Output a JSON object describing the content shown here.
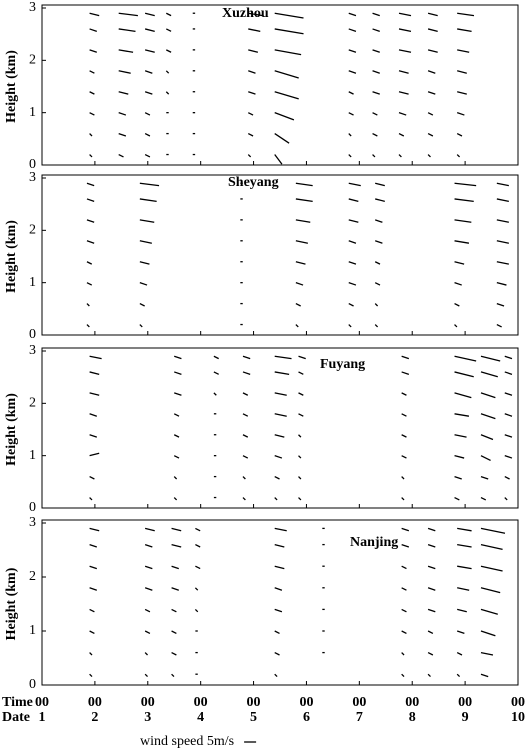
{
  "chart_data": [
    {
      "type": "wind-profile",
      "label": "Xuzhou",
      "ylabel": "Height (km)",
      "ylim": [
        0,
        3
      ],
      "yticks": [
        0,
        1,
        2,
        3
      ],
      "xlim": [
        1,
        10
      ],
      "heights": [
        0.2,
        0.6,
        1.0,
        1.4,
        1.8,
        2.2,
        2.6,
        2.9
      ],
      "profiles": [
        {
          "x": 1.9,
          "u": [
            1,
            1,
            2,
            2,
            2,
            3,
            3,
            4
          ],
          "v": [
            -1,
            -1,
            -1,
            -1,
            -1,
            -1,
            -1,
            -1
          ]
        },
        {
          "x": 2.45,
          "u": [
            2,
            3,
            3,
            4,
            5,
            6,
            7,
            8
          ],
          "v": [
            -1,
            -1,
            -1,
            -1,
            -1,
            -1,
            -1,
            -1
          ]
        },
        {
          "x": 2.95,
          "u": [
            2,
            2,
            2,
            3,
            3,
            4,
            4,
            4
          ],
          "v": [
            -1,
            -1,
            -1,
            -1,
            -1,
            -1,
            -1,
            -1
          ]
        },
        {
          "x": 3.35,
          "u": [
            1,
            1,
            1,
            1,
            1,
            2,
            2,
            2
          ],
          "v": [
            0,
            0,
            0,
            -1,
            -1,
            -1,
            -1,
            -1
          ]
        },
        {
          "x": 3.85,
          "u": [
            1,
            1,
            1,
            1,
            1,
            1,
            1,
            1
          ],
          "v": [
            0,
            0,
            0,
            0,
            0,
            0,
            0,
            0
          ]
        },
        {
          "x": 4.9,
          "u": [
            1,
            2,
            2,
            3,
            3,
            4,
            5,
            6
          ],
          "v": [
            -1,
            -1,
            -1,
            -1,
            -1,
            -1,
            -1,
            -1
          ]
        },
        {
          "x": 5.4,
          "u": [
            3,
            6,
            8,
            10,
            10,
            11,
            12,
            12
          ],
          "v": [
            -4,
            -4,
            -3,
            -3,
            -3,
            -2,
            -2,
            -2
          ]
        },
        {
          "x": 6.8,
          "u": [
            1,
            1,
            2,
            2,
            3,
            3,
            3,
            3
          ],
          "v": [
            -1,
            -1,
            -1,
            -1,
            -1,
            -1,
            -1,
            -1
          ]
        },
        {
          "x": 7.25,
          "u": [
            1,
            2,
            2,
            3,
            3,
            3,
            3,
            3
          ],
          "v": [
            -1,
            -1,
            -1,
            -1,
            -1,
            -1,
            -1,
            -1
          ]
        },
        {
          "x": 7.75,
          "u": [
            1,
            2,
            3,
            4,
            4,
            5,
            5,
            5
          ],
          "v": [
            -1,
            -1,
            -1,
            -1,
            -1,
            -1,
            -1,
            -1
          ]
        },
        {
          "x": 8.3,
          "u": [
            1,
            2,
            2,
            3,
            3,
            4,
            4,
            4
          ],
          "v": [
            -1,
            -1,
            -1,
            -1,
            -1,
            -1,
            -1,
            -1
          ]
        },
        {
          "x": 8.85,
          "u": [
            1,
            2,
            3,
            4,
            4,
            5,
            6,
            7
          ],
          "v": [
            -1,
            -1,
            -1,
            -1,
            -1,
            -1,
            -1,
            -1
          ]
        }
      ]
    },
    {
      "type": "wind-profile",
      "label": "Sheyang",
      "ylabel": "Height (km)",
      "ylim": [
        0,
        3
      ],
      "yticks": [
        0,
        1,
        2,
        3
      ],
      "xlim": [
        1,
        10
      ],
      "heights": [
        0.2,
        0.6,
        1.0,
        1.4,
        1.8,
        2.2,
        2.6,
        2.9
      ],
      "profiles": [
        {
          "x": 1.85,
          "u": [
            1,
            1,
            2,
            2,
            3,
            3,
            3,
            3
          ],
          "v": [
            -1,
            -1,
            -1,
            -1,
            -1,
            -1,
            -1,
            -1
          ]
        },
        {
          "x": 2.85,
          "u": [
            1,
            2,
            3,
            4,
            5,
            6,
            7,
            8
          ],
          "v": [
            -1,
            -1,
            -1,
            -1,
            -1,
            -1,
            -1,
            -1
          ]
        },
        {
          "x": 4.75,
          "u": [
            1,
            1,
            1,
            1,
            1,
            1,
            1,
            1
          ],
          "v": [
            0,
            0,
            0,
            0,
            0,
            0,
            0,
            0
          ]
        },
        {
          "x": 5.8,
          "u": [
            1,
            2,
            3,
            4,
            5,
            6,
            7,
            7
          ],
          "v": [
            -1,
            -1,
            -1,
            -1,
            -1,
            -1,
            -1,
            -1
          ]
        },
        {
          "x": 6.8,
          "u": [
            1,
            2,
            3,
            3,
            3,
            4,
            4,
            5
          ],
          "v": [
            -1,
            -1,
            -1,
            -1,
            -1,
            -1,
            -1,
            -1
          ]
        },
        {
          "x": 7.3,
          "u": [
            1,
            1,
            2,
            2,
            3,
            3,
            4,
            4
          ],
          "v": [
            -1,
            -1,
            -1,
            -1,
            -1,
            -1,
            -1,
            -1
          ]
        },
        {
          "x": 8.8,
          "u": [
            1,
            2,
            3,
            4,
            6,
            7,
            8,
            9
          ],
          "v": [
            -1,
            -1,
            -1,
            -1,
            -1,
            -1,
            -1,
            -1
          ]
        },
        {
          "x": 9.6,
          "u": [
            2,
            3,
            4,
            5,
            5,
            5,
            5,
            5
          ],
          "v": [
            -1,
            -1,
            -1,
            -1,
            -1,
            -1,
            -1,
            -1
          ]
        }
      ]
    },
    {
      "type": "wind-profile",
      "label": "Fuyang",
      "ylabel": "Height (km)",
      "ylim": [
        0,
        3
      ],
      "yticks": [
        0,
        1,
        2,
        3
      ],
      "xlim": [
        1,
        10
      ],
      "heights": [
        0.2,
        0.6,
        1.0,
        1.4,
        1.8,
        2.2,
        2.6,
        2.9
      ],
      "profiles": [
        {
          "x": 1.9,
          "u": [
            1,
            2,
            4,
            3,
            3,
            4,
            4,
            5
          ],
          "v": [
            -1,
            -1,
            1,
            -1,
            -1,
            -1,
            -1,
            -1
          ]
        },
        {
          "x": 3.5,
          "u": [
            1,
            1,
            2,
            2,
            2,
            3,
            3,
            3
          ],
          "v": [
            -1,
            -1,
            -1,
            -1,
            -1,
            -1,
            -1,
            -1
          ]
        },
        {
          "x": 4.25,
          "u": [
            1,
            1,
            1,
            1,
            1,
            1,
            2,
            2
          ],
          "v": [
            0,
            0,
            0,
            0,
            0,
            -1,
            -1,
            -1
          ]
        },
        {
          "x": 4.8,
          "u": [
            1,
            1,
            2,
            2,
            2,
            2,
            3,
            3
          ],
          "v": [
            -1,
            -1,
            -1,
            -1,
            -1,
            -1,
            -1,
            -1
          ]
        },
        {
          "x": 5.4,
          "u": [
            1,
            2,
            3,
            4,
            5,
            5,
            6,
            7
          ],
          "v": [
            -1,
            -1,
            -1,
            -1,
            -1,
            -1,
            -1,
            -1
          ]
        },
        {
          "x": 5.85,
          "u": [
            1,
            1,
            1,
            1,
            2,
            2,
            2,
            3
          ],
          "v": [
            -1,
            -1,
            -1,
            -1,
            -1,
            -1,
            -1,
            -1
          ]
        },
        {
          "x": 7.8,
          "u": [
            1,
            1,
            2,
            2,
            2,
            2,
            3,
            3
          ],
          "v": [
            -1,
            -1,
            -1,
            -1,
            -1,
            -1,
            -1,
            -1
          ]
        },
        {
          "x": 8.8,
          "u": [
            2,
            3,
            4,
            5,
            6,
            7,
            8,
            9
          ],
          "v": [
            -1,
            -1,
            -1,
            -1,
            -1,
            -2,
            -2,
            -2
          ]
        },
        {
          "x": 9.3,
          "u": [
            2,
            3,
            4,
            5,
            6,
            6,
            7,
            8
          ],
          "v": [
            -1,
            -1,
            -2,
            -2,
            -2,
            -2,
            -2,
            -2
          ]
        },
        {
          "x": 9.75,
          "u": [
            1,
            2,
            3,
            3,
            3,
            3,
            3,
            3
          ],
          "v": [
            -1,
            -1,
            -1,
            -1,
            -1,
            -1,
            -1,
            -1
          ]
        }
      ]
    },
    {
      "type": "wind-profile",
      "label": "Nanjing",
      "ylabel": "Height (km)",
      "ylim": [
        0,
        3
      ],
      "yticks": [
        0,
        1,
        2,
        3
      ],
      "xlim": [
        1,
        10
      ],
      "heights": [
        0.2,
        0.6,
        1.0,
        1.4,
        1.8,
        2.2,
        2.6,
        2.9
      ],
      "profiles": [
        {
          "x": 1.9,
          "u": [
            1,
            1,
            2,
            2,
            3,
            3,
            3,
            4
          ],
          "v": [
            -1,
            -1,
            -1,
            -1,
            -1,
            -1,
            -1,
            -1
          ]
        },
        {
          "x": 2.95,
          "u": [
            1,
            1,
            2,
            2,
            3,
            3,
            3,
            4
          ],
          "v": [
            -1,
            -1,
            -1,
            -1,
            -1,
            -1,
            -1,
            -1
          ]
        },
        {
          "x": 3.45,
          "u": [
            1,
            2,
            2,
            2,
            3,
            3,
            4,
            4
          ],
          "v": [
            -1,
            -1,
            -1,
            -1,
            -1,
            -1,
            -1,
            -1
          ]
        },
        {
          "x": 3.9,
          "u": [
            1,
            1,
            1,
            1,
            1,
            2,
            2,
            2
          ],
          "v": [
            0,
            0,
            0,
            -1,
            -1,
            -1,
            -1,
            -1
          ]
        },
        {
          "x": 5.4,
          "u": [
            1,
            2,
            2,
            3,
            3,
            4,
            4,
            5
          ],
          "v": [
            -1,
            -1,
            -1,
            -1,
            -1,
            -1,
            -1,
            -1
          ]
        },
        {
          "x": 6.3,
          "u": [
            0,
            1,
            1,
            1,
            1,
            1,
            1,
            1
          ],
          "v": [
            0,
            0,
            0,
            0,
            0,
            0,
            0,
            0
          ]
        },
        {
          "x": 7.8,
          "u": [
            1,
            1,
            2,
            2,
            2,
            2,
            3,
            3
          ],
          "v": [
            -1,
            -1,
            -1,
            -1,
            -1,
            -1,
            -1,
            -1
          ]
        },
        {
          "x": 8.3,
          "u": [
            1,
            2,
            2,
            3,
            3,
            3,
            3,
            3
          ],
          "v": [
            -1,
            -1,
            -1,
            -1,
            -1,
            -1,
            -1,
            -1
          ]
        },
        {
          "x": 8.85,
          "u": [
            1,
            2,
            3,
            4,
            5,
            6,
            6,
            6
          ],
          "v": [
            -1,
            -1,
            -1,
            -1,
            -1,
            -1,
            -1,
            -1
          ]
        },
        {
          "x": 9.3,
          "u": [
            3,
            5,
            6,
            7,
            8,
            9,
            9,
            10
          ],
          "v": [
            -1,
            -1,
            -2,
            -2,
            -2,
            -2,
            -2,
            -2
          ]
        }
      ],
      "xticks": [
        1,
        2,
        3,
        4,
        5,
        6,
        7,
        8,
        9,
        10
      ],
      "time_labels": [
        "00",
        "00",
        "00",
        "00",
        "00",
        "00",
        "00",
        "00",
        "00",
        "00"
      ],
      "time_title": "Time",
      "date_title": "Date",
      "scale_label": "wind speed  5m/s",
      "scale_value": 5
    }
  ]
}
